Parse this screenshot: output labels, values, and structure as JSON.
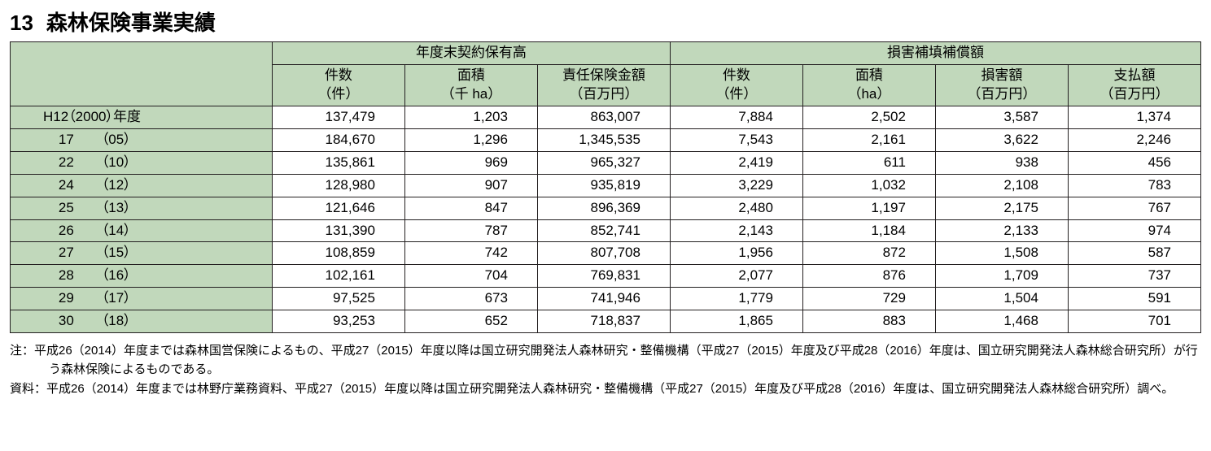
{
  "title_num": "13",
  "title_text": "森林保険事業実績",
  "group_headers": [
    "年度末契約保有高",
    "損害補填補償額"
  ],
  "sub_headers": [
    {
      "label": "件数",
      "unit": "（件）"
    },
    {
      "label": "面積",
      "unit": "（千 ha）"
    },
    {
      "label": "責任保険金額",
      "unit": "（百万円）"
    },
    {
      "label": "件数",
      "unit": "（件）"
    },
    {
      "label": "面積",
      "unit": "（ha）"
    },
    {
      "label": "損害額",
      "unit": "（百万円）"
    },
    {
      "label": "支払額",
      "unit": "（百万円）"
    }
  ],
  "rows": [
    {
      "year": "H12（2000）年度",
      "v": [
        "137,479",
        "1,203",
        "863,007",
        "7,884",
        "2,502",
        "3,587",
        "1,374"
      ]
    },
    {
      "year": "    17　　（05）",
      "v": [
        "184,670",
        "1,296",
        "1,345,535",
        "7,543",
        "2,161",
        "3,622",
        "2,246"
      ]
    },
    {
      "year": "    22　　（10）",
      "v": [
        "135,861",
        "969",
        "965,327",
        "2,419",
        "611",
        "938",
        "456"
      ]
    },
    {
      "year": "    24　　（12）",
      "v": [
        "128,980",
        "907",
        "935,819",
        "3,229",
        "1,032",
        "2,108",
        "783"
      ]
    },
    {
      "year": "    25　　（13）",
      "v": [
        "121,646",
        "847",
        "896,369",
        "2,480",
        "1,197",
        "2,175",
        "767"
      ]
    },
    {
      "year": "    26　　（14）",
      "v": [
        "131,390",
        "787",
        "852,741",
        "2,143",
        "1,184",
        "2,133",
        "974"
      ]
    },
    {
      "year": "    27　　（15）",
      "v": [
        "108,859",
        "742",
        "807,708",
        "1,956",
        "872",
        "1,508",
        "587"
      ]
    },
    {
      "year": "    28　　（16）",
      "v": [
        "102,161",
        "704",
        "769,831",
        "2,077",
        "876",
        "1,709",
        "737"
      ]
    },
    {
      "year": "    29　　（17）",
      "v": [
        "97,525",
        "673",
        "741,946",
        "1,779",
        "729",
        "1,504",
        "591"
      ]
    },
    {
      "year": "    30　　（18）",
      "v": [
        "93,253",
        "652",
        "718,837",
        "1,865",
        "883",
        "1,468",
        "701"
      ]
    }
  ],
  "note1": "注：平成26（2014）年度までは森林国営保険によるもの、平成27（2015）年度以降は国立研究開発法人森林研究・整備機構（平成27（2015）年度及び平成28（2016）年度は、国立研究開発法人森林総合研究所）が行う森林保険によるものである。",
  "note2": "資料：平成26（2014）年度までは林野庁業務資料、平成27（2015）年度以降は国立研究開発法人森林研究・整備機構（平成27（2015）年度及び平成28（2016）年度は、国立研究開発法人森林総合研究所）調べ。"
}
